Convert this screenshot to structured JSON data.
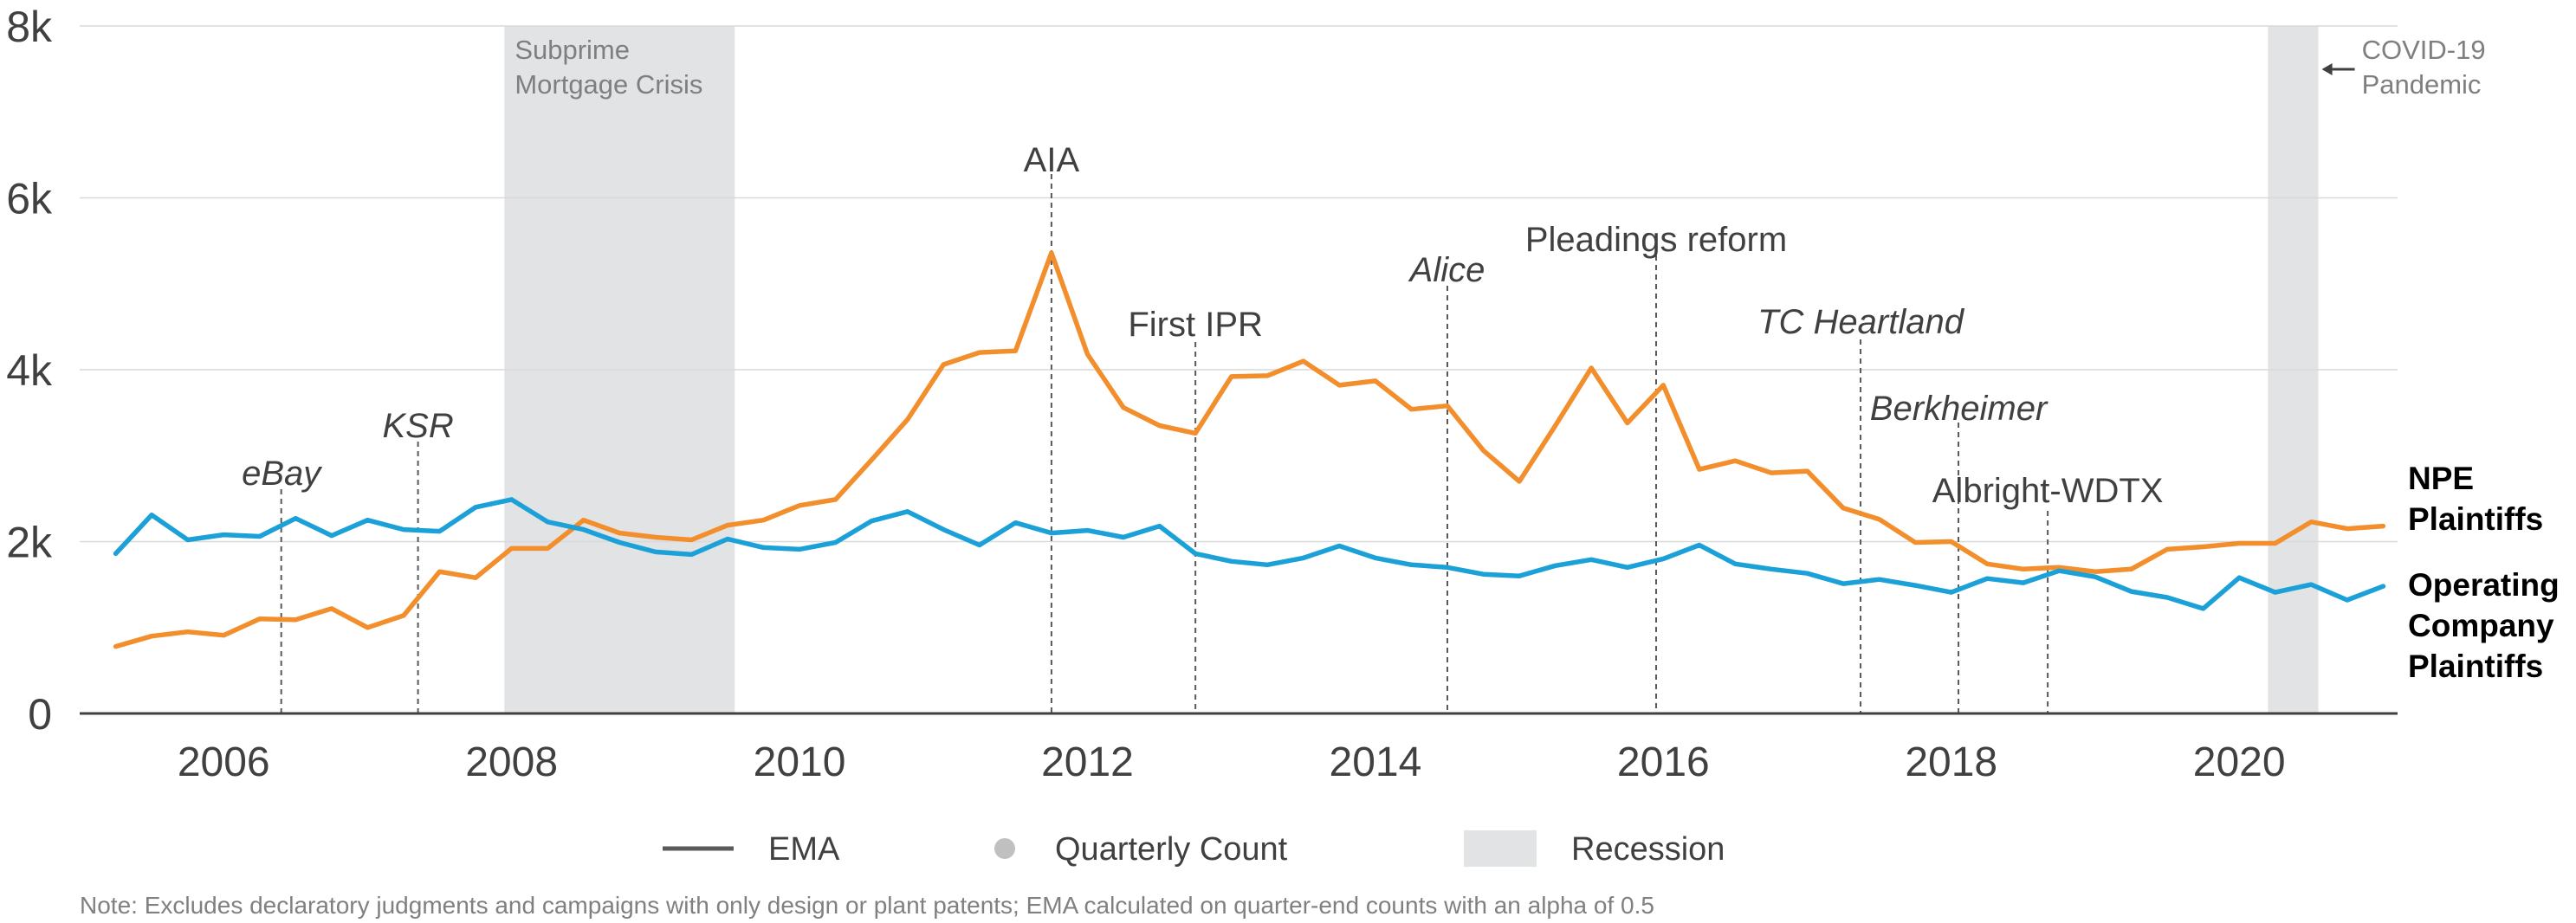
{
  "chart_data": {
    "type": "line",
    "title": "",
    "xlabel": "",
    "ylabel": "",
    "xlim": [
      2005.0,
      2021.1
    ],
    "ylim": [
      0,
      8000
    ],
    "x_ticks": [
      {
        "value": 2006,
        "label": "2006"
      },
      {
        "value": 2008,
        "label": "2008"
      },
      {
        "value": 2010,
        "label": "2010"
      },
      {
        "value": 2012,
        "label": "2012"
      },
      {
        "value": 2014,
        "label": "2014"
      },
      {
        "value": 2016,
        "label": "2016"
      },
      {
        "value": 2018,
        "label": "2018"
      },
      {
        "value": 2020,
        "label": "2020"
      }
    ],
    "y_ticks": [
      {
        "value": 0,
        "label": "0"
      },
      {
        "value": 2000,
        "label": "2k"
      },
      {
        "value": 4000,
        "label": "4k"
      },
      {
        "value": 6000,
        "label": "6k"
      },
      {
        "value": 8000,
        "label": "8k"
      }
    ],
    "grid": true,
    "series": [
      {
        "name": "NPE\nPlaintiffs",
        "color": "#f28e2b",
        "values": [
          780,
          900,
          950,
          910,
          1100,
          1090,
          1220,
          1000,
          1140,
          1650,
          1580,
          1920,
          1920,
          2250,
          2100,
          2050,
          2020,
          2190,
          2250,
          2420,
          2490,
          2950,
          3420,
          4060,
          4200,
          4220,
          5360,
          4180,
          3560,
          3350,
          3260,
          3920,
          3930,
          4100,
          3820,
          3870,
          3540,
          3580,
          3060,
          2700,
          3350,
          4020,
          3380,
          3820,
          2840,
          2940,
          2800,
          2820,
          2390,
          2260,
          1990,
          2000,
          1740,
          1680,
          1700,
          1650,
          1680,
          1910,
          1940,
          1980,
          1980,
          2230,
          2150,
          2180
        ]
      },
      {
        "name": "Operating\nCompany\nPlaintiffs",
        "color": "#1ba1d8",
        "values": [
          1860,
          2310,
          2020,
          2080,
          2060,
          2270,
          2070,
          2250,
          2140,
          2120,
          2400,
          2490,
          2230,
          2140,
          1990,
          1880,
          1850,
          2030,
          1930,
          1910,
          1990,
          2240,
          2350,
          2140,
          1960,
          2220,
          2100,
          2130,
          2050,
          2180,
          1860,
          1770,
          1730,
          1810,
          1950,
          1810,
          1730,
          1700,
          1620,
          1600,
          1720,
          1790,
          1700,
          1800,
          1960,
          1740,
          1680,
          1630,
          1510,
          1560,
          1490,
          1410,
          1570,
          1520,
          1660,
          1590,
          1420,
          1350,
          1220,
          1580,
          1410,
          1500,
          1320,
          1480
        ]
      }
    ],
    "x_start": 2005.25,
    "x_step": 0.25,
    "shaded_regions": [
      {
        "label": "Subprime\nMortgage Crisis",
        "x0": 2007.95,
        "x1": 2009.55
      },
      {
        "label": "COVID-19\nPandemic",
        "x0": 2020.2,
        "x1": 2020.55
      }
    ],
    "events": [
      {
        "label": "eBay",
        "italic": true,
        "x": 2006.4
      },
      {
        "label": "KSR",
        "italic": true,
        "x": 2007.35
      },
      {
        "label": "AIA",
        "italic": false,
        "x": 2011.75
      },
      {
        "label": "First IPR",
        "italic": false,
        "x": 2012.75
      },
      {
        "label": "Alice",
        "italic": true,
        "x": 2014.5
      },
      {
        "label": "Pleadings reform",
        "italic": false,
        "x": 2015.95
      },
      {
        "label": "TC Heartland",
        "italic": true,
        "x": 2017.37
      },
      {
        "label": "Berkheimer",
        "italic": true,
        "x": 2018.05
      },
      {
        "label": "Albright-WDTX",
        "italic": false,
        "x": 2018.67
      }
    ],
    "legend": {
      "placement": "bottom",
      "items": [
        {
          "label": "EMA",
          "symbol": "line"
        },
        {
          "label": "Quarterly Count",
          "symbol": "dot"
        },
        {
          "label": "Recession",
          "symbol": "box"
        }
      ]
    },
    "note": "Note: Excludes declaratory judgments and campaigns with only design or plant patents; EMA calculated on quarter-end counts with an alpha of 0.5"
  }
}
